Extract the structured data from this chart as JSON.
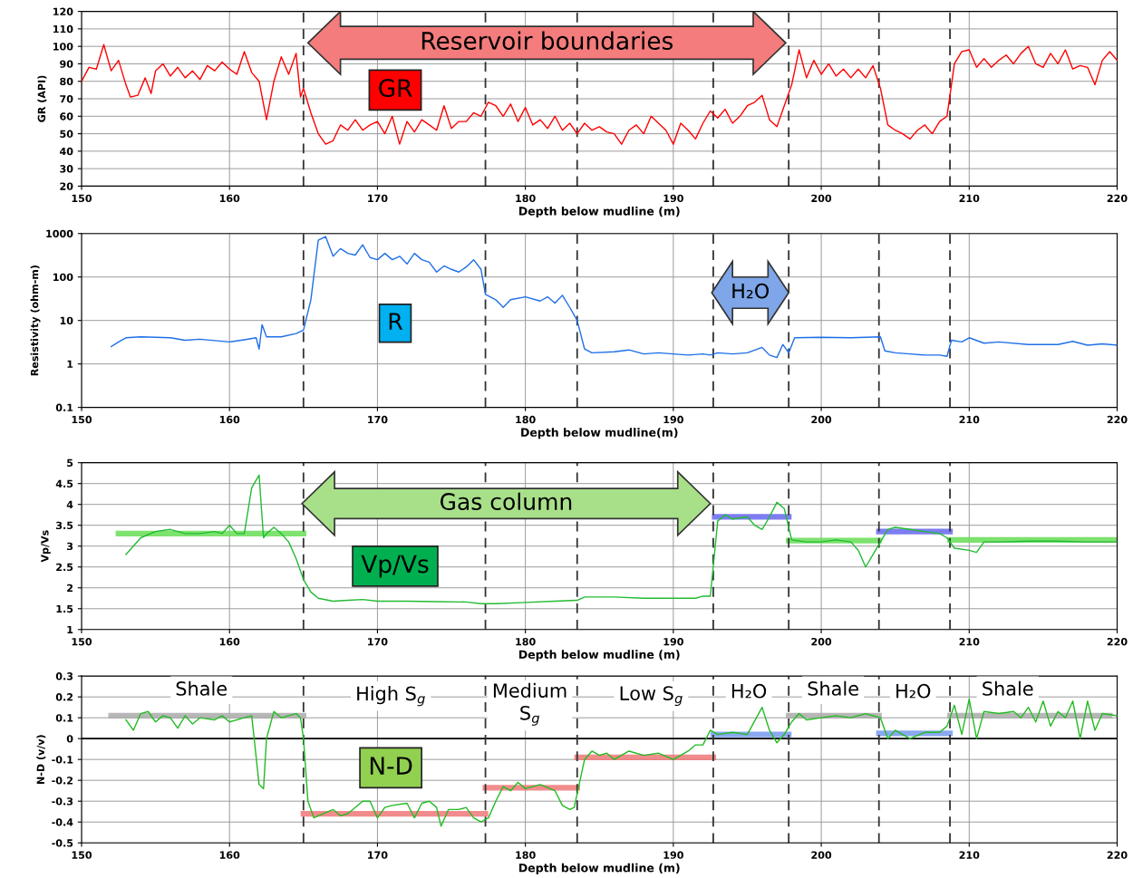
{
  "chart_data": [
    {
      "type": "line",
      "xlabel": "Depth below mudline (m)",
      "ylabel": "GR (API)",
      "xlim": [
        150,
        220
      ],
      "xticks": [
        150,
        160,
        170,
        180,
        190,
        200,
        210,
        220
      ],
      "ylim": [
        20,
        120
      ],
      "yticks": [
        20,
        30,
        40,
        50,
        60,
        70,
        80,
        90,
        100,
        110,
        120
      ],
      "grid": true,
      "marker": "none",
      "line_style": "solid",
      "annotations": [
        "Reservoir boundaries",
        "GR"
      ],
      "ref_lines": [
        {
          "axis": "x",
          "value": 165,
          "line_style": "dashed",
          "color": "#333333"
        },
        {
          "axis": "x",
          "value": 177.3,
          "line_style": "dashed",
          "color": "#333333"
        },
        {
          "axis": "x",
          "value": 183.5,
          "line_style": "dashed",
          "color": "#333333"
        },
        {
          "axis": "x",
          "value": 192.7,
          "line_style": "dashed",
          "color": "#333333"
        },
        {
          "axis": "x",
          "value": 197.8,
          "line_style": "dashed",
          "color": "#333333"
        },
        {
          "axis": "x",
          "value": 203.9,
          "line_style": "dashed",
          "color": "#333333"
        },
        {
          "axis": "x",
          "value": 208.7,
          "line_style": "dashed",
          "color": "#333333"
        }
      ],
      "series": [
        {
          "type": "line",
          "color": "#ff0000",
          "x": [
            150,
            150.5,
            151,
            151.5,
            152,
            152.5,
            153,
            153.3,
            153.8,
            154.3,
            154.7,
            155,
            155.5,
            156,
            156.5,
            157,
            157.5,
            158,
            158.5,
            159,
            159.5,
            160,
            160.5,
            161,
            161.5,
            162,
            162.5,
            163,
            163.5,
            164,
            164.5,
            164.8,
            165,
            165.5,
            166,
            166.5,
            167,
            167.5,
            168,
            168.5,
            169,
            169.5,
            170,
            170.5,
            171,
            171.5,
            172,
            172.5,
            173,
            173.5,
            174,
            174.5,
            175,
            175.5,
            176,
            176.5,
            177,
            177.5,
            178,
            178.5,
            179,
            179.5,
            180,
            180.5,
            181,
            181.5,
            182,
            182.5,
            183,
            183.5,
            184,
            184.5,
            185,
            185.5,
            186,
            186.5,
            187,
            187.5,
            188,
            188.5,
            189,
            189.5,
            190,
            190.5,
            191,
            191.5,
            192,
            192.5,
            193,
            193.5,
            194,
            194.5,
            195,
            195.5,
            196,
            196.5,
            197,
            197.5,
            198,
            198.5,
            199,
            199.5,
            200,
            200.5,
            201,
            201.5,
            202,
            202.5,
            203,
            203.5,
            204,
            204.5,
            205,
            205.5,
            206,
            206.5,
            207,
            207.5,
            208,
            208.5,
            209,
            209.5,
            210,
            210.5,
            211,
            211.5,
            212,
            212.5,
            213,
            213.5,
            214,
            214.5,
            215,
            215.5,
            216,
            216.5,
            217,
            217.5,
            218,
            218.5,
            219,
            219.5,
            220
          ],
          "values": [
            80,
            88,
            87,
            101,
            86,
            92,
            78,
            71,
            72,
            82,
            73,
            86,
            90,
            83,
            88,
            82,
            86,
            81,
            89,
            86,
            91,
            87,
            84,
            97,
            85,
            80,
            58,
            80,
            94,
            84,
            96,
            71,
            76,
            62,
            50,
            44,
            46,
            55,
            52,
            58,
            52,
            55,
            57,
            50,
            60,
            44,
            57,
            51,
            58,
            55,
            52,
            66,
            53,
            57,
            57,
            62,
            60,
            68,
            66,
            60,
            67,
            57,
            65,
            55,
            58,
            53,
            60,
            52,
            56,
            50,
            56,
            52,
            54,
            51,
            50,
            44,
            52,
            55,
            50,
            60,
            56,
            52,
            44,
            56,
            52,
            47,
            56,
            63,
            59,
            64,
            56,
            60,
            66,
            68,
            72,
            58,
            54,
            66,
            78,
            98,
            82,
            92,
            84,
            90,
            83,
            87,
            82,
            87,
            82,
            89,
            76,
            55,
            52,
            50,
            47,
            52,
            55,
            50,
            57,
            60,
            90,
            97,
            98,
            88,
            93,
            88,
            92,
            95,
            90,
            96,
            100,
            90,
            88,
            96,
            90,
            98,
            87,
            89,
            88,
            78,
            92,
            97,
            92
          ]
        }
      ]
    },
    {
      "type": "line",
      "xlabel": "Depth below mudline(m)",
      "ylabel": "Resistivity (ohm-m)",
      "xlim": [
        150,
        220
      ],
      "xticks": [
        150,
        160,
        170,
        180,
        190,
        200,
        210,
        220
      ],
      "log": true,
      "ylim": [
        0.1,
        1000
      ],
      "yticks": [
        0.1,
        1,
        10,
        100,
        1000
      ],
      "grid": true,
      "marker": "none",
      "line_style": "solid",
      "annotations": [
        "R",
        "H₂O"
      ],
      "ref_lines": [
        {
          "axis": "x",
          "value": 165,
          "line_style": "dashed",
          "color": "#333333"
        },
        {
          "axis": "x",
          "value": 177.3,
          "line_style": "dashed",
          "color": "#333333"
        },
        {
          "axis": "x",
          "value": 183.5,
          "line_style": "dashed",
          "color": "#333333"
        },
        {
          "axis": "x",
          "value": 192.7,
          "line_style": "dashed",
          "color": "#333333"
        },
        {
          "axis": "x",
          "value": 197.8,
          "line_style": "dashed",
          "color": "#333333"
        },
        {
          "axis": "x",
          "value": 203.9,
          "line_style": "dashed",
          "color": "#333333"
        },
        {
          "axis": "x",
          "value": 208.7,
          "line_style": "dashed",
          "color": "#333333"
        }
      ],
      "series": [
        {
          "type": "line",
          "color": "#1f6fe8",
          "x": [
            152,
            152.5,
            153,
            154,
            156,
            157,
            158,
            160,
            161,
            161.8,
            162,
            162.2,
            162.5,
            163.5,
            164.5,
            165,
            165.5,
            166,
            166.5,
            167,
            167.5,
            168,
            168.5,
            169,
            169.5,
            170,
            170.5,
            171,
            171.5,
            172,
            172.5,
            173,
            173.5,
            174,
            174.5,
            175,
            175.5,
            176,
            176.5,
            177,
            177.3,
            178,
            178.5,
            179,
            180,
            181,
            181.5,
            182,
            182.5,
            183,
            183.5,
            184,
            184.5,
            186,
            187,
            188,
            189,
            191,
            192,
            192.5,
            193,
            194,
            195,
            196,
            196.5,
            197,
            197.4,
            197.8,
            198.2,
            200,
            202,
            204,
            204.3,
            205,
            206,
            207,
            208,
            208.5,
            208.8,
            209.5,
            210,
            211,
            212,
            214,
            216,
            217,
            218,
            219,
            220
          ],
          "values": [
            2.5,
            3.2,
            4,
            4.2,
            4,
            3.5,
            3.7,
            3.2,
            3.6,
            4,
            2.2,
            8,
            4.2,
            4.2,
            5,
            6,
            30,
            700,
            850,
            300,
            450,
            350,
            320,
            550,
            280,
            250,
            350,
            250,
            300,
            200,
            350,
            250,
            220,
            130,
            180,
            150,
            130,
            170,
            250,
            150,
            40,
            30,
            20,
            30,
            35,
            28,
            35,
            25,
            38,
            20,
            10,
            2.2,
            1.8,
            1.9,
            2.1,
            1.7,
            1.8,
            1.6,
            1.7,
            1.6,
            1.8,
            1.7,
            1.8,
            2.4,
            1.6,
            1.4,
            2.8,
            1.8,
            4,
            4.1,
            4,
            4.2,
            2,
            1.8,
            1.7,
            1.6,
            1.6,
            1.5,
            3.5,
            3.2,
            4,
            3,
            3.2,
            2.8,
            2.8,
            3.3,
            2.7,
            2.9,
            2.7
          ]
        }
      ]
    },
    {
      "type": "line",
      "xlabel": "Depth below mudline (m)",
      "ylabel": "Vp/Vs",
      "xlim": [
        150,
        220
      ],
      "xticks": [
        150,
        160,
        170,
        180,
        190,
        200,
        210,
        220
      ],
      "ylim": [
        1,
        5
      ],
      "yticks": [
        1,
        1.5,
        2,
        2.5,
        3,
        3.5,
        4,
        4.5,
        5
      ],
      "grid": true,
      "marker": "none",
      "line_style": "solid",
      "annotations": [
        "Gas column",
        "Vp/Vs"
      ],
      "ref_lines": [
        {
          "axis": "x",
          "value": 165,
          "line_style": "dashed",
          "color": "#333333"
        },
        {
          "axis": "x",
          "value": 177.3,
          "line_style": "dashed",
          "color": "#333333"
        },
        {
          "axis": "x",
          "value": 183.5,
          "line_style": "dashed",
          "color": "#333333"
        },
        {
          "axis": "x",
          "value": 192.7,
          "line_style": "dashed",
          "color": "#333333"
        },
        {
          "axis": "x",
          "value": 197.8,
          "line_style": "dashed",
          "color": "#333333"
        },
        {
          "axis": "x",
          "value": 203.9,
          "line_style": "dashed",
          "color": "#333333"
        },
        {
          "axis": "x",
          "value": 208.7,
          "line_style": "dashed",
          "color": "#333333"
        }
      ],
      "series": [
        {
          "type": "line",
          "color": "#22bb33",
          "x": [
            153,
            153.5,
            154,
            155,
            156,
            157,
            158,
            159,
            159.5,
            160,
            160.5,
            161,
            161.5,
            162,
            162.3,
            162.5,
            163,
            163.5,
            164,
            164.5,
            165,
            165.5,
            166,
            167,
            168,
            169,
            170,
            172,
            174,
            176,
            177,
            178,
            180,
            182,
            183.5,
            184,
            186,
            188,
            190,
            191.5,
            192,
            192.5,
            193,
            193.5,
            194,
            195,
            195.5,
            196,
            196.5,
            197,
            197.5,
            198,
            199,
            200,
            201,
            202,
            202.5,
            203,
            203.5,
            204,
            204.5,
            205,
            206,
            207,
            208,
            208.5,
            209,
            210,
            210.5,
            211,
            212,
            214,
            216,
            218,
            220
          ],
          "values": [
            2.8,
            3,
            3.2,
            3.35,
            3.4,
            3.3,
            3.3,
            3.35,
            3.3,
            3.5,
            3.3,
            3.3,
            4.4,
            4.7,
            3.2,
            3.3,
            3.45,
            3.3,
            3.1,
            2.7,
            2.2,
            1.9,
            1.75,
            1.68,
            1.7,
            1.72,
            1.68,
            1.68,
            1.67,
            1.66,
            1.62,
            1.62,
            1.65,
            1.68,
            1.7,
            1.78,
            1.78,
            1.75,
            1.75,
            1.75,
            1.8,
            1.8,
            3.6,
            3.75,
            3.65,
            3.7,
            3.5,
            3.4,
            3.7,
            4.05,
            3.9,
            3.15,
            3.1,
            3.1,
            3.15,
            3.1,
            2.9,
            2.5,
            2.8,
            3.1,
            3.4,
            3.45,
            3.4,
            3.35,
            3.3,
            3.2,
            2.95,
            2.9,
            2.85,
            3.1,
            3.1,
            3.12,
            3.12,
            3.1,
            3.1
          ]
        },
        {
          "type": "line",
          "color": "#66dd55",
          "x": [
            152.5,
            165
          ],
          "values": [
            3.3,
            3.3
          ]
        },
        {
          "type": "line",
          "color": "#6666ee",
          "x": [
            192.8,
            197.8
          ],
          "values": [
            3.7,
            3.7
          ]
        },
        {
          "type": "line",
          "color": "#66dd55",
          "x": [
            197.8,
            203.9
          ],
          "values": [
            3.13,
            3.13
          ]
        },
        {
          "type": "line",
          "color": "#6666ee",
          "x": [
            203.9,
            208.7
          ],
          "values": [
            3.35,
            3.35
          ]
        },
        {
          "type": "line",
          "color": "#66dd55",
          "x": [
            208.7,
            219.8
          ],
          "values": [
            3.15,
            3.15
          ]
        }
      ]
    },
    {
      "type": "line",
      "xlabel": "Depth below mudline (m)",
      "ylabel": "N-D (v/v)",
      "xlim": [
        150,
        220
      ],
      "xticks": [
        150,
        160,
        170,
        180,
        190,
        200,
        210,
        220
      ],
      "ylim": [
        -0.5,
        0.3
      ],
      "yticks": [
        -0.5,
        -0.4,
        -0.3,
        -0.2,
        -0.1,
        0,
        0.1,
        0.2,
        0.3
      ],
      "grid": true,
      "marker": "none",
      "line_style": "solid",
      "annotations": [
        "Shale",
        "High S$_{g}$",
        "Medium\nS$_{g}$",
        "Low S$_{g}$",
        "H₂O",
        "Shale",
        "H₂O",
        "Shale",
        "N-D"
      ],
      "ref_lines": [
        {
          "axis": "y",
          "value": 0,
          "line_style": "solid",
          "color": "#000000"
        },
        {
          "axis": "x",
          "value": 165,
          "line_style": "dashed",
          "color": "#333333"
        },
        {
          "axis": "x",
          "value": 177.3,
          "line_style": "dashed",
          "color": "#333333"
        },
        {
          "axis": "x",
          "value": 183.5,
          "line_style": "dashed",
          "color": "#333333"
        },
        {
          "axis": "x",
          "value": 192.7,
          "line_style": "dashed",
          "color": "#333333"
        },
        {
          "axis": "x",
          "value": 197.8,
          "line_style": "dashed",
          "color": "#333333"
        },
        {
          "axis": "x",
          "value": 203.9,
          "line_style": "dashed",
          "color": "#333333"
        },
        {
          "axis": "x",
          "value": 208.7,
          "line_style": "dashed",
          "color": "#333333"
        }
      ],
      "series": [
        {
          "type": "line",
          "color": "#22bb22",
          "x": [
            153,
            153.5,
            154,
            154.5,
            155,
            155.5,
            156,
            156.5,
            157,
            157.5,
            158,
            159,
            159.5,
            160,
            161,
            161.5,
            162,
            162.3,
            162.5,
            163,
            163.5,
            164,
            164.5,
            164.8,
            165,
            165.3,
            165.7,
            166,
            167,
            167.5,
            168,
            169,
            169.5,
            170,
            170.5,
            171,
            172,
            172.5,
            173,
            173.5,
            174,
            174.3,
            174.8,
            175.5,
            176,
            176.5,
            177,
            177.5,
            178,
            178.5,
            179,
            179.5,
            180,
            181,
            182,
            182.5,
            183,
            183.3,
            184,
            184.5,
            185,
            185.5,
            186,
            187,
            188,
            189,
            190,
            190.5,
            191,
            191.5,
            192,
            192.5,
            193,
            194,
            195,
            196,
            196.5,
            197,
            197.5,
            198,
            198.5,
            199,
            200,
            201,
            202,
            203,
            204,
            204.5,
            205,
            205.5,
            206,
            207,
            208,
            208.5,
            209,
            209.5,
            210,
            210.5,
            211,
            212,
            213,
            213.5,
            214,
            214.5,
            215,
            215.5,
            216,
            216.5,
            217,
            217.5,
            218,
            218.5,
            219,
            220
          ],
          "values": [
            0.09,
            0.04,
            0.12,
            0.13,
            0.08,
            0.11,
            0.1,
            0.05,
            0.11,
            0.07,
            0.1,
            0.09,
            0.11,
            0.08,
            0.1,
            0.11,
            -0.22,
            -0.24,
            0,
            0.13,
            0.1,
            0.11,
            0.12,
            0.1,
            0,
            -0.3,
            -0.38,
            -0.37,
            -0.34,
            -0.37,
            -0.36,
            -0.3,
            -0.3,
            -0.38,
            -0.33,
            -0.32,
            -0.31,
            -0.38,
            -0.31,
            -0.3,
            -0.33,
            -0.42,
            -0.34,
            -0.34,
            -0.33,
            -0.38,
            -0.4,
            -0.38,
            -0.3,
            -0.23,
            -0.25,
            -0.21,
            -0.24,
            -0.22,
            -0.25,
            -0.32,
            -0.34,
            -0.33,
            -0.1,
            -0.06,
            -0.08,
            -0.07,
            -0.1,
            -0.06,
            -0.08,
            -0.07,
            -0.1,
            -0.08,
            -0.06,
            -0.03,
            -0.03,
            0.04,
            0.02,
            0.03,
            0.02,
            0.15,
            0.04,
            -0.02,
            0.02,
            0.08,
            0.12,
            0.09,
            0.1,
            0.11,
            0.1,
            0.12,
            0.1,
            0,
            0.04,
            0.02,
            0,
            0.03,
            0.03,
            0.06,
            0.16,
            0.02,
            0.19,
            0,
            0.13,
            0.12,
            0.13,
            0.1,
            0.15,
            0.08,
            0.18,
            0.06,
            0.13,
            0.1,
            0.18,
            0,
            0.18,
            0.04,
            0.12,
            0.11
          ]
        },
        {
          "type": "line",
          "color": "#aaaaaa",
          "x": [
            152,
            165
          ],
          "values": [
            0.11,
            0.11
          ]
        },
        {
          "type": "line",
          "color": "#f07878",
          "x": [
            165,
            177.3
          ],
          "values": [
            -0.36,
            -0.36
          ]
        },
        {
          "type": "line",
          "color": "#f07878",
          "x": [
            177.3,
            183.5
          ],
          "values": [
            -0.235,
            -0.235
          ]
        },
        {
          "type": "line",
          "color": "#f07878",
          "x": [
            183.5,
            192.7
          ],
          "values": [
            -0.09,
            -0.09
          ]
        },
        {
          "type": "line",
          "color": "#7799ee",
          "x": [
            192.7,
            197.8
          ],
          "values": [
            0.02,
            0.02
          ]
        },
        {
          "type": "line",
          "color": "#aaaaaa",
          "x": [
            197.8,
            203.9
          ],
          "values": [
            0.11,
            0.11
          ]
        },
        {
          "type": "line",
          "color": "#7799ee",
          "x": [
            203.9,
            208.7
          ],
          "values": [
            0.025,
            0.025
          ]
        },
        {
          "type": "line",
          "color": "#aaaaaa",
          "x": [
            208.7,
            219.5
          ],
          "values": [
            0.11,
            0.11
          ]
        }
      ]
    }
  ]
}
